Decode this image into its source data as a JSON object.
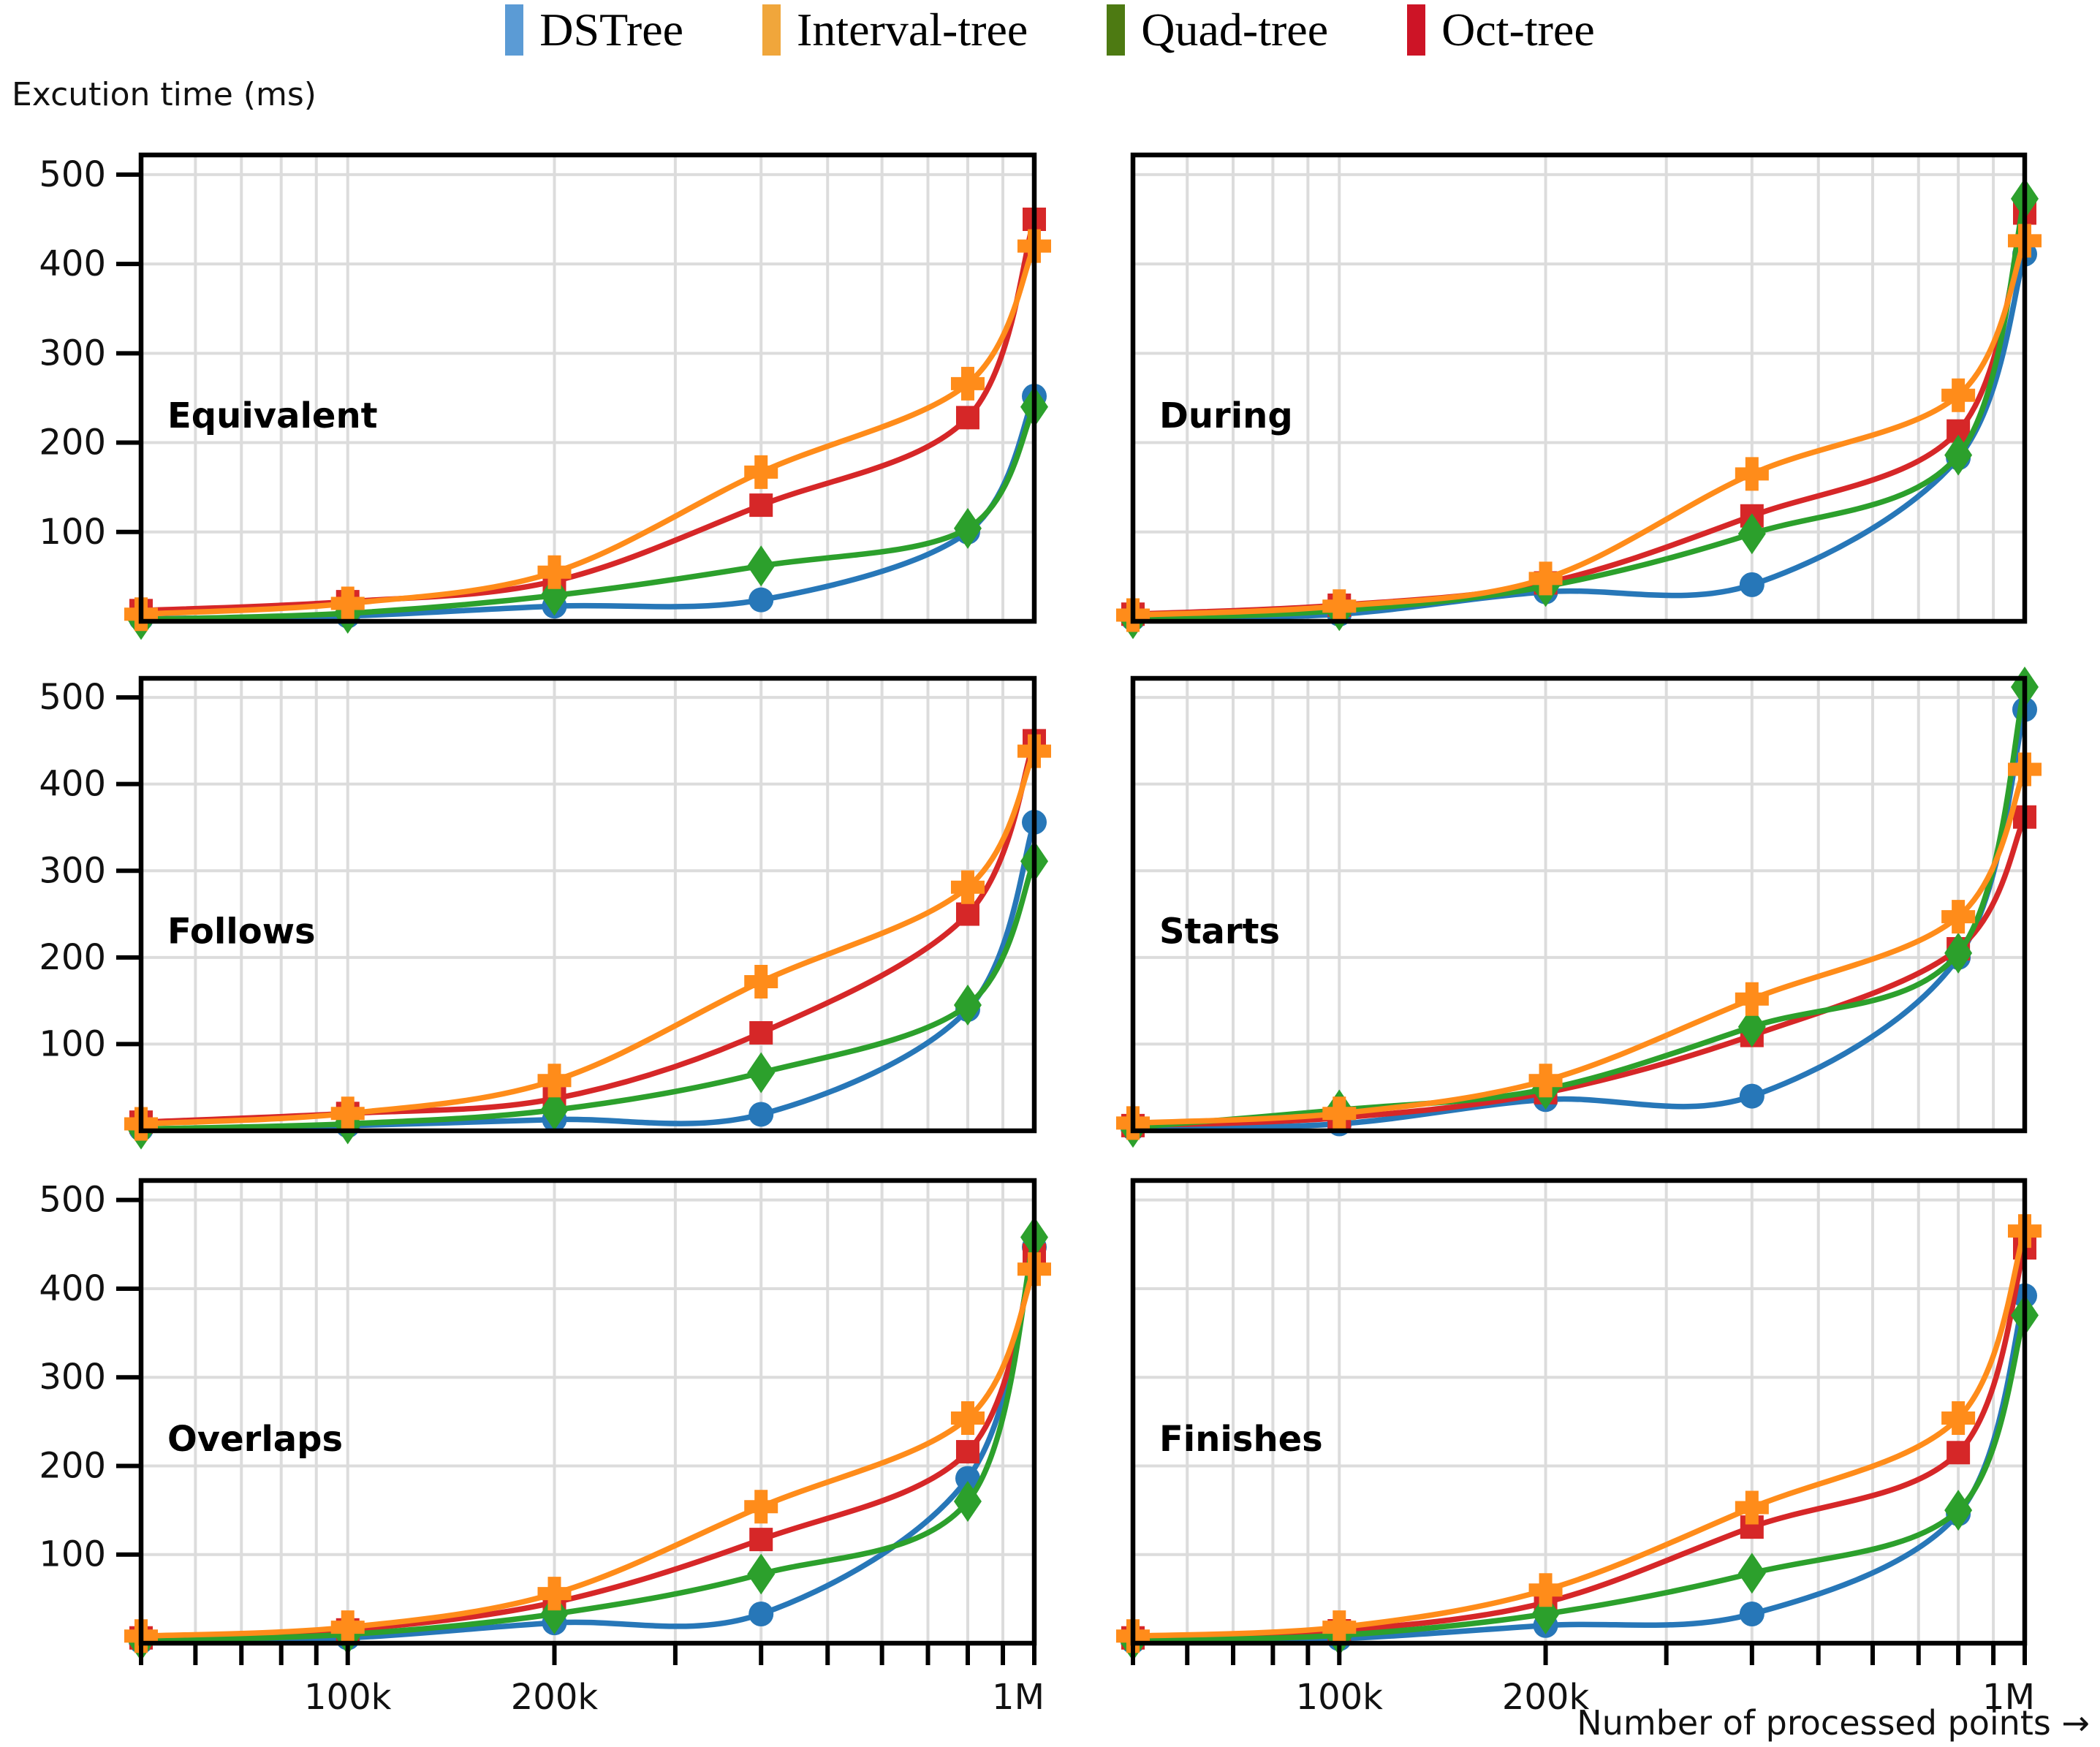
{
  "legend": {
    "items": [
      {
        "label": "DSTree",
        "swatch_color": "#5b9bd5"
      },
      {
        "label": "Interval-tree",
        "swatch_color": "#f0a63b"
      },
      {
        "label": "Quad-tree",
        "swatch_color": "#4d7a12"
      },
      {
        "label": "Oct-tree",
        "swatch_color": "#cd1426"
      }
    ]
  },
  "axes": {
    "y_title": "Excution time (ms)",
    "x_title": "Number of processed points →"
  },
  "chart_data": {
    "type": "line",
    "x_scale": "log",
    "x_values": [
      50000,
      100000,
      200000,
      400000,
      800000,
      1000000
    ],
    "xlim": [
      50000,
      1000000
    ],
    "ylim": [
      0,
      522
    ],
    "y_ticks": [
      100,
      200,
      300,
      400,
      500
    ],
    "x_major_ticks": [
      100000,
      200000,
      1000000
    ],
    "x_tick_labels": [
      "100k",
      "200k",
      "1M"
    ],
    "x_minor_ticks": [
      50000,
      60000,
      70000,
      80000,
      90000,
      300000,
      400000,
      500000,
      600000,
      700000,
      800000,
      900000
    ],
    "grid": true,
    "legend_position": "top-center",
    "series": [
      {
        "name": "DSTree",
        "line_color": "#2777b8",
        "marker": "circle"
      },
      {
        "name": "Interval-tree",
        "line_color": "#ff8c1a",
        "marker": "plus"
      },
      {
        "name": "Quad-tree",
        "line_color": "#2ca02c",
        "marker": "diamond"
      },
      {
        "name": "Oct-tree",
        "line_color": "#d62728",
        "marker": "square"
      }
    ],
    "draw_order": [
      "DSTree",
      "Oct-tree",
      "Quad-tree",
      "Interval-tree"
    ],
    "subplots": [
      {
        "name": "Equivalent",
        "values": {
          "DSTree": [
            3,
            6,
            17,
            24,
            100,
            252
          ],
          "Interval-tree": [
            8,
            20,
            55,
            167,
            266,
            420
          ],
          "Quad-tree": [
            2,
            9,
            29,
            62,
            104,
            240
          ],
          "Oct-tree": [
            12,
            22,
            45,
            130,
            228,
            450
          ]
        }
      },
      {
        "name": "During",
        "values": {
          "DSTree": [
            3,
            8,
            33,
            41,
            183,
            411
          ],
          "Interval-tree": [
            7,
            17,
            48,
            165,
            253,
            426
          ],
          "Quad-tree": [
            3,
            12,
            39,
            98,
            186,
            473
          ],
          "Oct-tree": [
            8,
            18,
            43,
            118,
            213,
            457
          ]
        }
      },
      {
        "name": "Follows",
        "values": {
          "DSTree": [
            2,
            6,
            13,
            19,
            140,
            356
          ],
          "Interval-tree": [
            8,
            20,
            58,
            172,
            281,
            438
          ],
          "Quad-tree": [
            2,
            8,
            24,
            67,
            145,
            311
          ],
          "Oct-tree": [
            10,
            20,
            37,
            113,
            250,
            450
          ]
        }
      },
      {
        "name": "Starts",
        "values": {
          "DSTree": [
            3,
            8,
            36,
            40,
            200,
            486
          ],
          "Interval-tree": [
            9,
            20,
            58,
            152,
            247,
            417
          ],
          "Quad-tree": [
            4,
            24,
            48,
            120,
            205,
            512
          ],
          "Oct-tree": [
            6,
            15,
            44,
            110,
            210,
            362
          ]
        }
      },
      {
        "name": "Overlaps",
        "values": {
          "DSTree": [
            2,
            6,
            23,
            33,
            186,
            447
          ],
          "Interval-tree": [
            8,
            18,
            56,
            154,
            254,
            422
          ],
          "Quad-tree": [
            3,
            10,
            33,
            78,
            160,
            458
          ],
          "Oct-tree": [
            6,
            15,
            46,
            117,
            216,
            438
          ]
        }
      },
      {
        "name": "Finishes",
        "values": {
          "DSTree": [
            2,
            5,
            20,
            33,
            146,
            392
          ],
          "Interval-tree": [
            8,
            18,
            60,
            153,
            254,
            465
          ],
          "Quad-tree": [
            3,
            9,
            33,
            79,
            150,
            370
          ],
          "Oct-tree": [
            6,
            14,
            46,
            131,
            215,
            446
          ]
        }
      }
    ]
  }
}
